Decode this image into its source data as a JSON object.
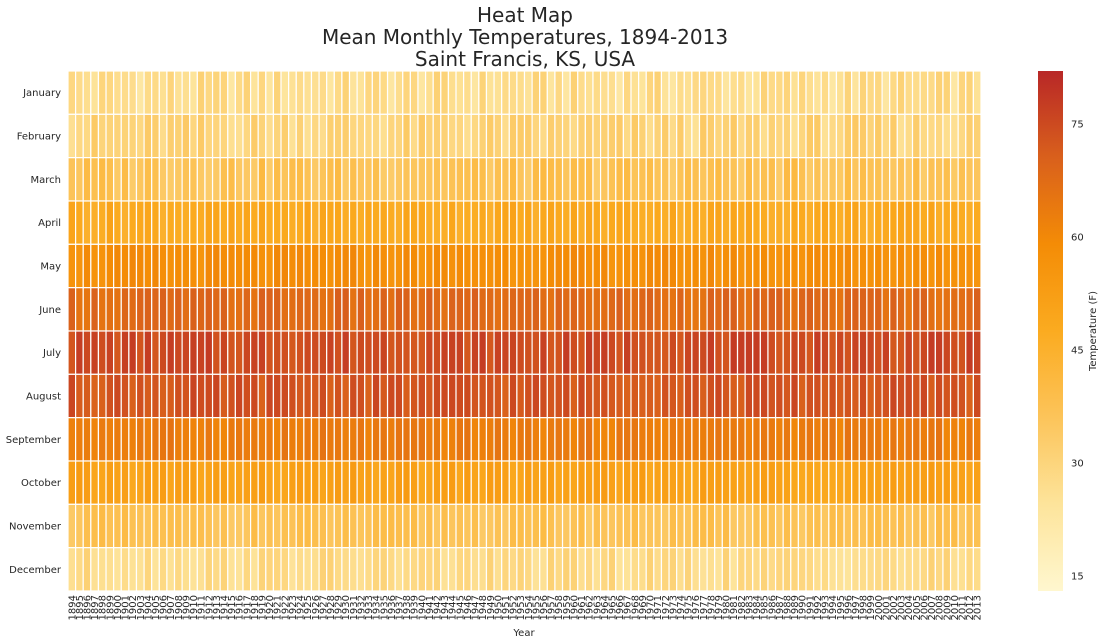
{
  "chart_data": {
    "type": "heatmap",
    "title": [
      "Heat Map",
      "Mean Monthly Temperatures, 1894-2013",
      "Saint Francis, KS, USA"
    ],
    "xlabel": "Year",
    "ylabel": "",
    "colorbar_label": "Temperature (F)",
    "colorbar_ticks": [
      15,
      30,
      45,
      60,
      75
    ],
    "color_range": [
      13,
      82
    ],
    "colormap": [
      "#fff7cf",
      "#fde49b",
      "#fcc45a",
      "#fbab20",
      "#f48c06",
      "#d9601c",
      "#b82727"
    ],
    "years": [
      1894,
      1895,
      1896,
      1897,
      1898,
      1899,
      1900,
      1901,
      1902,
      1903,
      1904,
      1905,
      1906,
      1907,
      1908,
      1909,
      1910,
      1911,
      1912,
      1913,
      1914,
      1915,
      1916,
      1917,
      1918,
      1919,
      1920,
      1921,
      1922,
      1923,
      1924,
      1925,
      1926,
      1927,
      1928,
      1929,
      1930,
      1931,
      1932,
      1933,
      1934,
      1935,
      1936,
      1937,
      1938,
      1939,
      1940,
      1941,
      1942,
      1943,
      1944,
      1945,
      1946,
      1947,
      1948,
      1949,
      1950,
      1951,
      1952,
      1953,
      1954,
      1955,
      1956,
      1957,
      1958,
      1959,
      1960,
      1961,
      1962,
      1963,
      1964,
      1965,
      1966,
      1967,
      1968,
      1969,
      1970,
      1971,
      1972,
      1973,
      1974,
      1975,
      1976,
      1977,
      1978,
      1979,
      1980,
      1981,
      1982,
      1983,
      1984,
      1985,
      1986,
      1987,
      1988,
      1989,
      1990,
      1991,
      1992,
      1993,
      1994,
      1995,
      1996,
      1997,
      1998,
      1999,
      2000,
      2001,
      2002,
      2003,
      2004,
      2005,
      2006,
      2007,
      2008,
      2009,
      2010,
      2011,
      2012,
      2013
    ],
    "year_tick_labels": [
      "1894",
      "1895",
      "1896",
      "1897",
      "1898",
      "1899",
      "1900",
      "1901",
      "1902",
      "1903",
      "1904",
      "1905",
      "1906",
      "1907",
      "1908",
      "1909",
      "1910",
      "1911",
      "1912",
      "1913",
      "1914",
      "1915",
      "1916",
      "1917",
      "1918",
      "1919",
      "1920",
      "1921",
      "1922",
      "1923",
      "1924",
      "1925",
      "1926",
      "1927",
      "1928",
      "1929",
      "1930",
      "1931",
      "1932",
      "1933",
      "1934",
      "1935",
      "1936",
      "1937",
      "1938",
      "1939",
      "1940",
      "1941",
      "1942",
      "1943",
      "1944",
      "1945",
      "1946",
      "1947",
      "1948",
      "1949",
      "1950",
      "1951",
      "1952",
      "1953",
      "1954",
      "1955",
      "1956",
      "1957",
      "1958",
      "1959",
      "1960",
      "1961",
      "1962",
      "1963",
      "1964",
      "1965",
      "1966",
      "1967",
      "1968",
      "1969",
      "1970",
      "1971",
      "1972",
      "1973",
      "1974",
      "1975",
      "1976",
      "1977",
      "1978",
      "1979",
      "1980",
      "1981",
      "1982",
      "1983",
      "1984",
      "1985",
      "1986",
      "1987",
      "1988",
      "1989",
      "1990",
      "1991",
      "1992",
      "1993",
      "1994",
      "1995",
      "1996",
      "1997",
      "1998",
      "1999",
      "2000",
      "2001",
      "2002",
      "2003",
      "2004",
      "2005",
      "2006",
      "2007",
      "2008",
      "2009",
      "2010",
      "2011",
      "2012",
      "2013"
    ],
    "months": [
      "January",
      "February",
      "March",
      "April",
      "May",
      "June",
      "July",
      "August",
      "September",
      "October",
      "November",
      "December"
    ],
    "monthly_mean_estimate": [
      27,
      30,
      37,
      48,
      58,
      68,
      75,
      73,
      63,
      51,
      37,
      28
    ],
    "monthly_spread_estimate": [
      4.5,
      4.5,
      4,
      3,
      2.5,
      3,
      3,
      3,
      2.5,
      2.5,
      3,
      3.5
    ],
    "values_note_estimated": true
  }
}
